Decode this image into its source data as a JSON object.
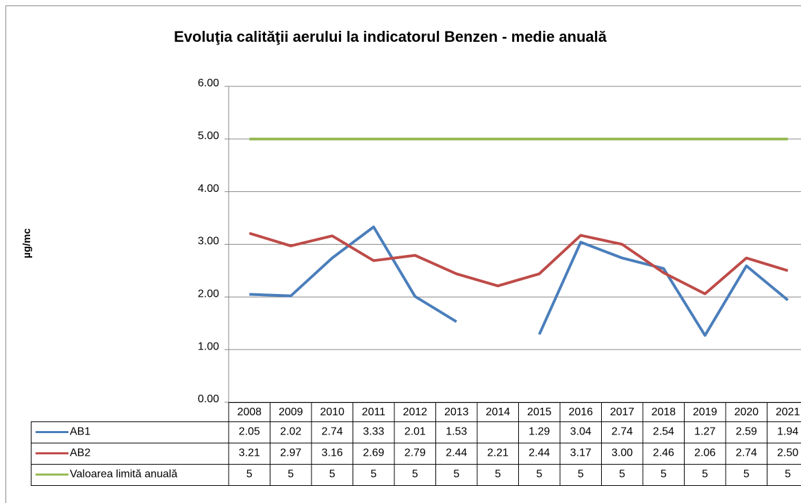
{
  "chart_data": {
    "type": "line",
    "title": "Evoluţia calităţii aerului la indicatorul Benzen - medie anuală",
    "y_label": "µg/mc",
    "categories": [
      "2008",
      "2009",
      "2010",
      "2011",
      "2012",
      "2013",
      "2014",
      "2015",
      "2016",
      "2017",
      "2018",
      "2019",
      "2020",
      "2021"
    ],
    "series": [
      {
        "name": "AB1",
        "color": "#4a7ebb",
        "values": [
          2.05,
          2.02,
          2.74,
          3.33,
          2.01,
          1.53,
          null,
          1.29,
          3.04,
          2.74,
          2.54,
          1.27,
          2.59,
          1.94
        ],
        "value_labels": [
          "2.05",
          "2.02",
          "2.74",
          "3.33",
          "2.01",
          "1.53",
          null,
          "1.29",
          "3.04",
          "2.74",
          "2.54",
          "1.27",
          "2.59",
          "1.94"
        ]
      },
      {
        "name": "AB2",
        "color": "#be4b48",
        "values": [
          3.21,
          2.97,
          3.16,
          2.69,
          2.79,
          2.44,
          2.21,
          2.44,
          3.17,
          3.0,
          2.46,
          2.06,
          2.74,
          2.5
        ],
        "value_labels": [
          "3.21",
          "2.97",
          "3.16",
          "2.69",
          "2.79",
          "2.44",
          "2.21",
          "2.44",
          "3.17",
          "3.00",
          "2.46",
          "2.06",
          "2.74",
          "2.50"
        ]
      },
      {
        "name": "Valoarea limită anuală",
        "color": "#98b954",
        "values": [
          5,
          5,
          5,
          5,
          5,
          5,
          5,
          5,
          5,
          5,
          5,
          5,
          5,
          5
        ]
      }
    ],
    "ylim": [
      0,
      6
    ],
    "yticks": [
      {
        "value": 0,
        "label": "0.00"
      },
      {
        "value": 1,
        "label": "1.00"
      },
      {
        "value": 2,
        "label": "2.00"
      },
      {
        "value": 3,
        "label": "3.00"
      },
      {
        "value": 4,
        "label": "4.00"
      },
      {
        "value": 5,
        "label": "5.00"
      },
      {
        "value": 6,
        "label": "6.00"
      }
    ],
    "grid": true
  }
}
